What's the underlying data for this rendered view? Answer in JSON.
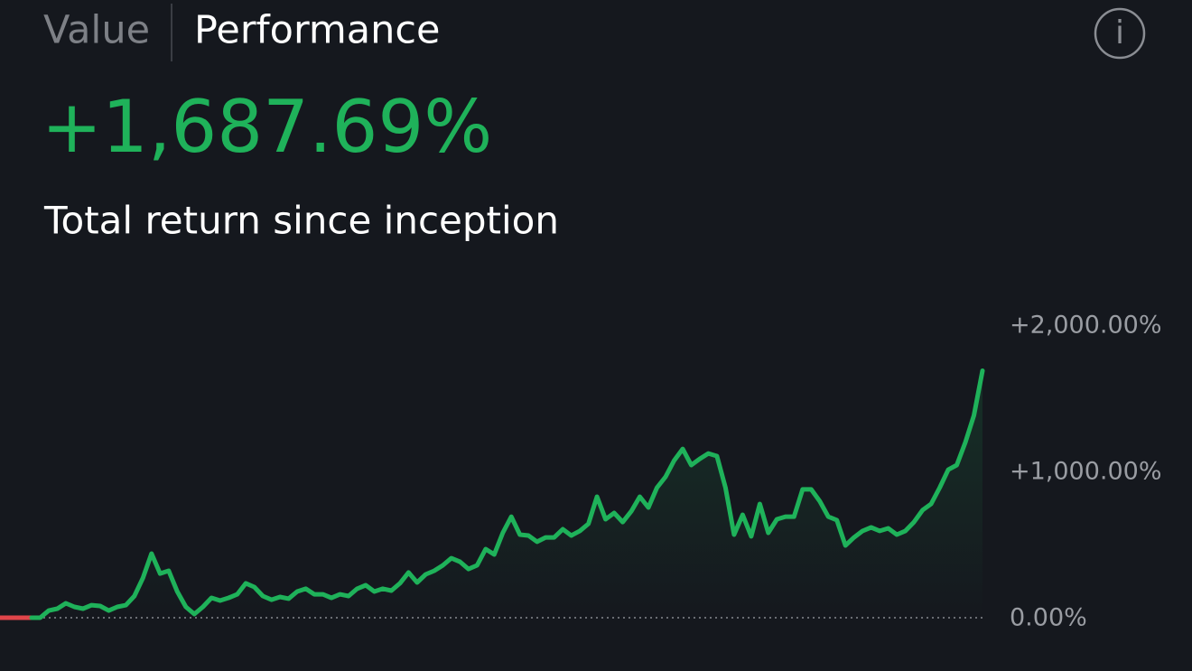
{
  "tabs": [
    "Value",
    "Performance"
  ],
  "info_icon": "i",
  "chart_data": {
    "type": "line",
    "title": "+1,687.69%",
    "subtitle": "Total return since inception",
    "color": "#1fb25a",
    "values": [
      0,
      0,
      49,
      62,
      99,
      74,
      62,
      86,
      80,
      49,
      74,
      86,
      148,
      272,
      438,
      302,
      321,
      179,
      74,
      25,
      74,
      136,
      117,
      136,
      160,
      235,
      210,
      148,
      123,
      142,
      130,
      179,
      198,
      160,
      160,
      136,
      160,
      148,
      198,
      222,
      179,
      198,
      185,
      235,
      309,
      241,
      296,
      321,
      358,
      407,
      383,
      333,
      358,
      469,
      432,
      580,
      691,
      568,
      562,
      519,
      549,
      549,
      605,
      562,
      593,
      642,
      827,
      673,
      716,
      654,
      728,
      827,
      753,
      889,
      963,
      1074,
      1154,
      1043,
      1086,
      1123,
      1105,
      889,
      568,
      704,
      556,
      778,
      580,
      673,
      691,
      691,
      877,
      877,
      796,
      691,
      667,
      494,
      549,
      593,
      617,
      593,
      611,
      568,
      593,
      654,
      735,
      778,
      889,
      1012,
      1043,
      1198,
      1383,
      1688
    ],
    "ylim": [
      0,
      2000
    ],
    "yticks": [
      {
        "value": 0,
        "label": "0.00%"
      },
      {
        "value": 1000,
        "label": "+1,000.00%"
      },
      {
        "value": 2000,
        "label": "+2,000.00%"
      }
    ],
    "grid": false
  }
}
